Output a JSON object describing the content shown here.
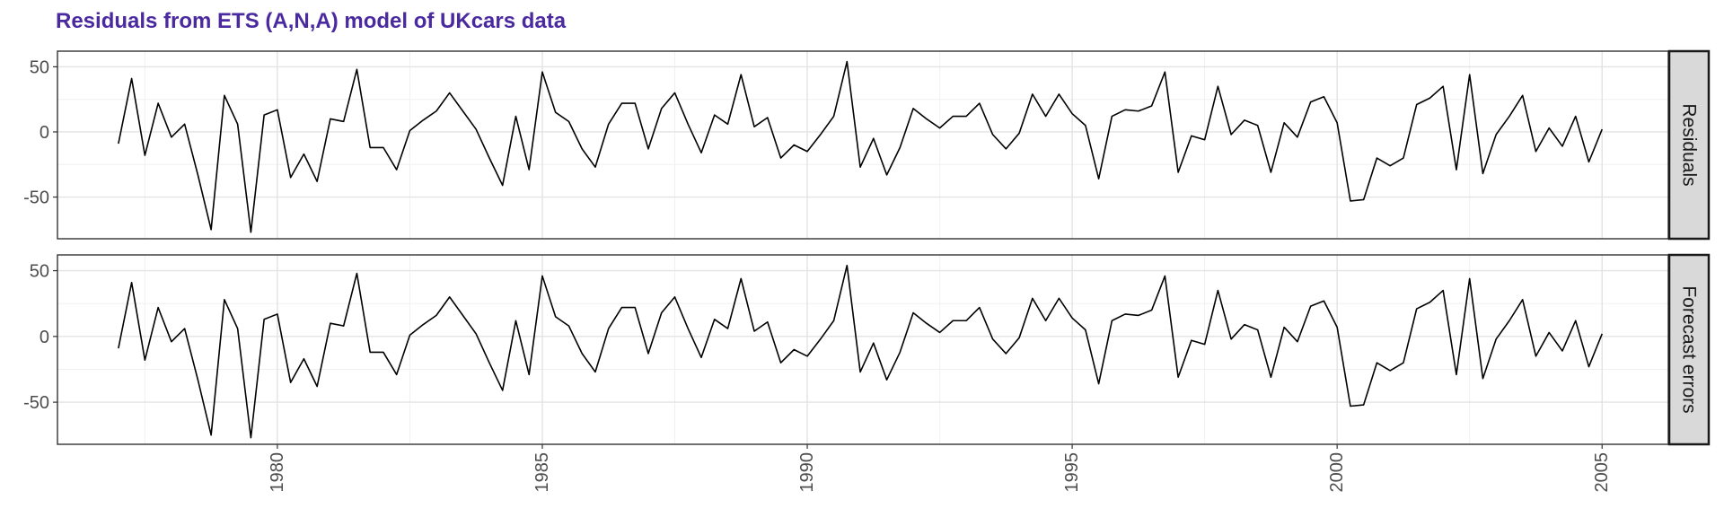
{
  "chart_data": {
    "type": "line",
    "title": "Residuals from ETS (A,N,A) model of UKcars data",
    "xlabel": "",
    "ylabel": "",
    "x_start": 1977.0,
    "x_step": 0.25,
    "xlim": [
      1975.85,
      2006.25
    ],
    "ylim": [
      -82,
      62
    ],
    "x_ticks": [
      "1980",
      "1985",
      "1990",
      "1995",
      "2000",
      "2005"
    ],
    "y_ticks": [
      "50",
      "0",
      "-50"
    ],
    "grid": true,
    "panels": [
      {
        "strip_label": "Residuals",
        "values": [
          -9,
          41,
          -18,
          22,
          -4,
          6,
          -33,
          -75,
          28,
          6,
          -77,
          13,
          17,
          -35,
          -17,
          -38,
          10,
          8,
          48,
          -12,
          -12,
          -29,
          1,
          9,
          16,
          30,
          16,
          2,
          -20,
          -41,
          12,
          -29,
          46,
          15,
          8,
          -13,
          -27,
          6,
          22,
          22,
          -13,
          18,
          30,
          6,
          -16,
          13,
          6,
          44,
          4,
          11,
          -20,
          -10,
          -15,
          -2,
          12,
          54,
          -27,
          -5,
          -33,
          -12,
          18,
          10,
          3,
          12,
          12,
          22,
          -2,
          -13,
          -1,
          29,
          12,
          29,
          14,
          5,
          -36,
          12,
          17,
          16,
          20,
          46,
          -31,
          -3,
          -6,
          35,
          -2,
          9,
          5,
          -31,
          7,
          -4,
          23,
          27,
          7,
          -53,
          -52,
          -20,
          -26,
          -20,
          21,
          26,
          35,
          -29,
          44,
          -32,
          -2,
          12,
          28,
          -15,
          3,
          -11,
          12,
          -23,
          2
        ]
      },
      {
        "strip_label": "Forecast errors",
        "values": [
          -9,
          41,
          -18,
          22,
          -4,
          6,
          -33,
          -75,
          28,
          6,
          -77,
          13,
          17,
          -35,
          -17,
          -38,
          10,
          8,
          48,
          -12,
          -12,
          -29,
          1,
          9,
          16,
          30,
          16,
          2,
          -20,
          -41,
          12,
          -29,
          46,
          15,
          8,
          -13,
          -27,
          6,
          22,
          22,
          -13,
          18,
          30,
          6,
          -16,
          13,
          6,
          44,
          4,
          11,
          -20,
          -10,
          -15,
          -2,
          12,
          54,
          -27,
          -5,
          -33,
          -12,
          18,
          10,
          3,
          12,
          12,
          22,
          -2,
          -13,
          -1,
          29,
          12,
          29,
          14,
          5,
          -36,
          12,
          17,
          16,
          20,
          46,
          -31,
          -3,
          -6,
          35,
          -2,
          9,
          5,
          -31,
          7,
          -4,
          23,
          27,
          7,
          -53,
          -52,
          -20,
          -26,
          -20,
          21,
          26,
          35,
          -29,
          44,
          -32,
          -2,
          12,
          28,
          -15,
          3,
          -11,
          12,
          -23,
          2
        ]
      }
    ]
  }
}
